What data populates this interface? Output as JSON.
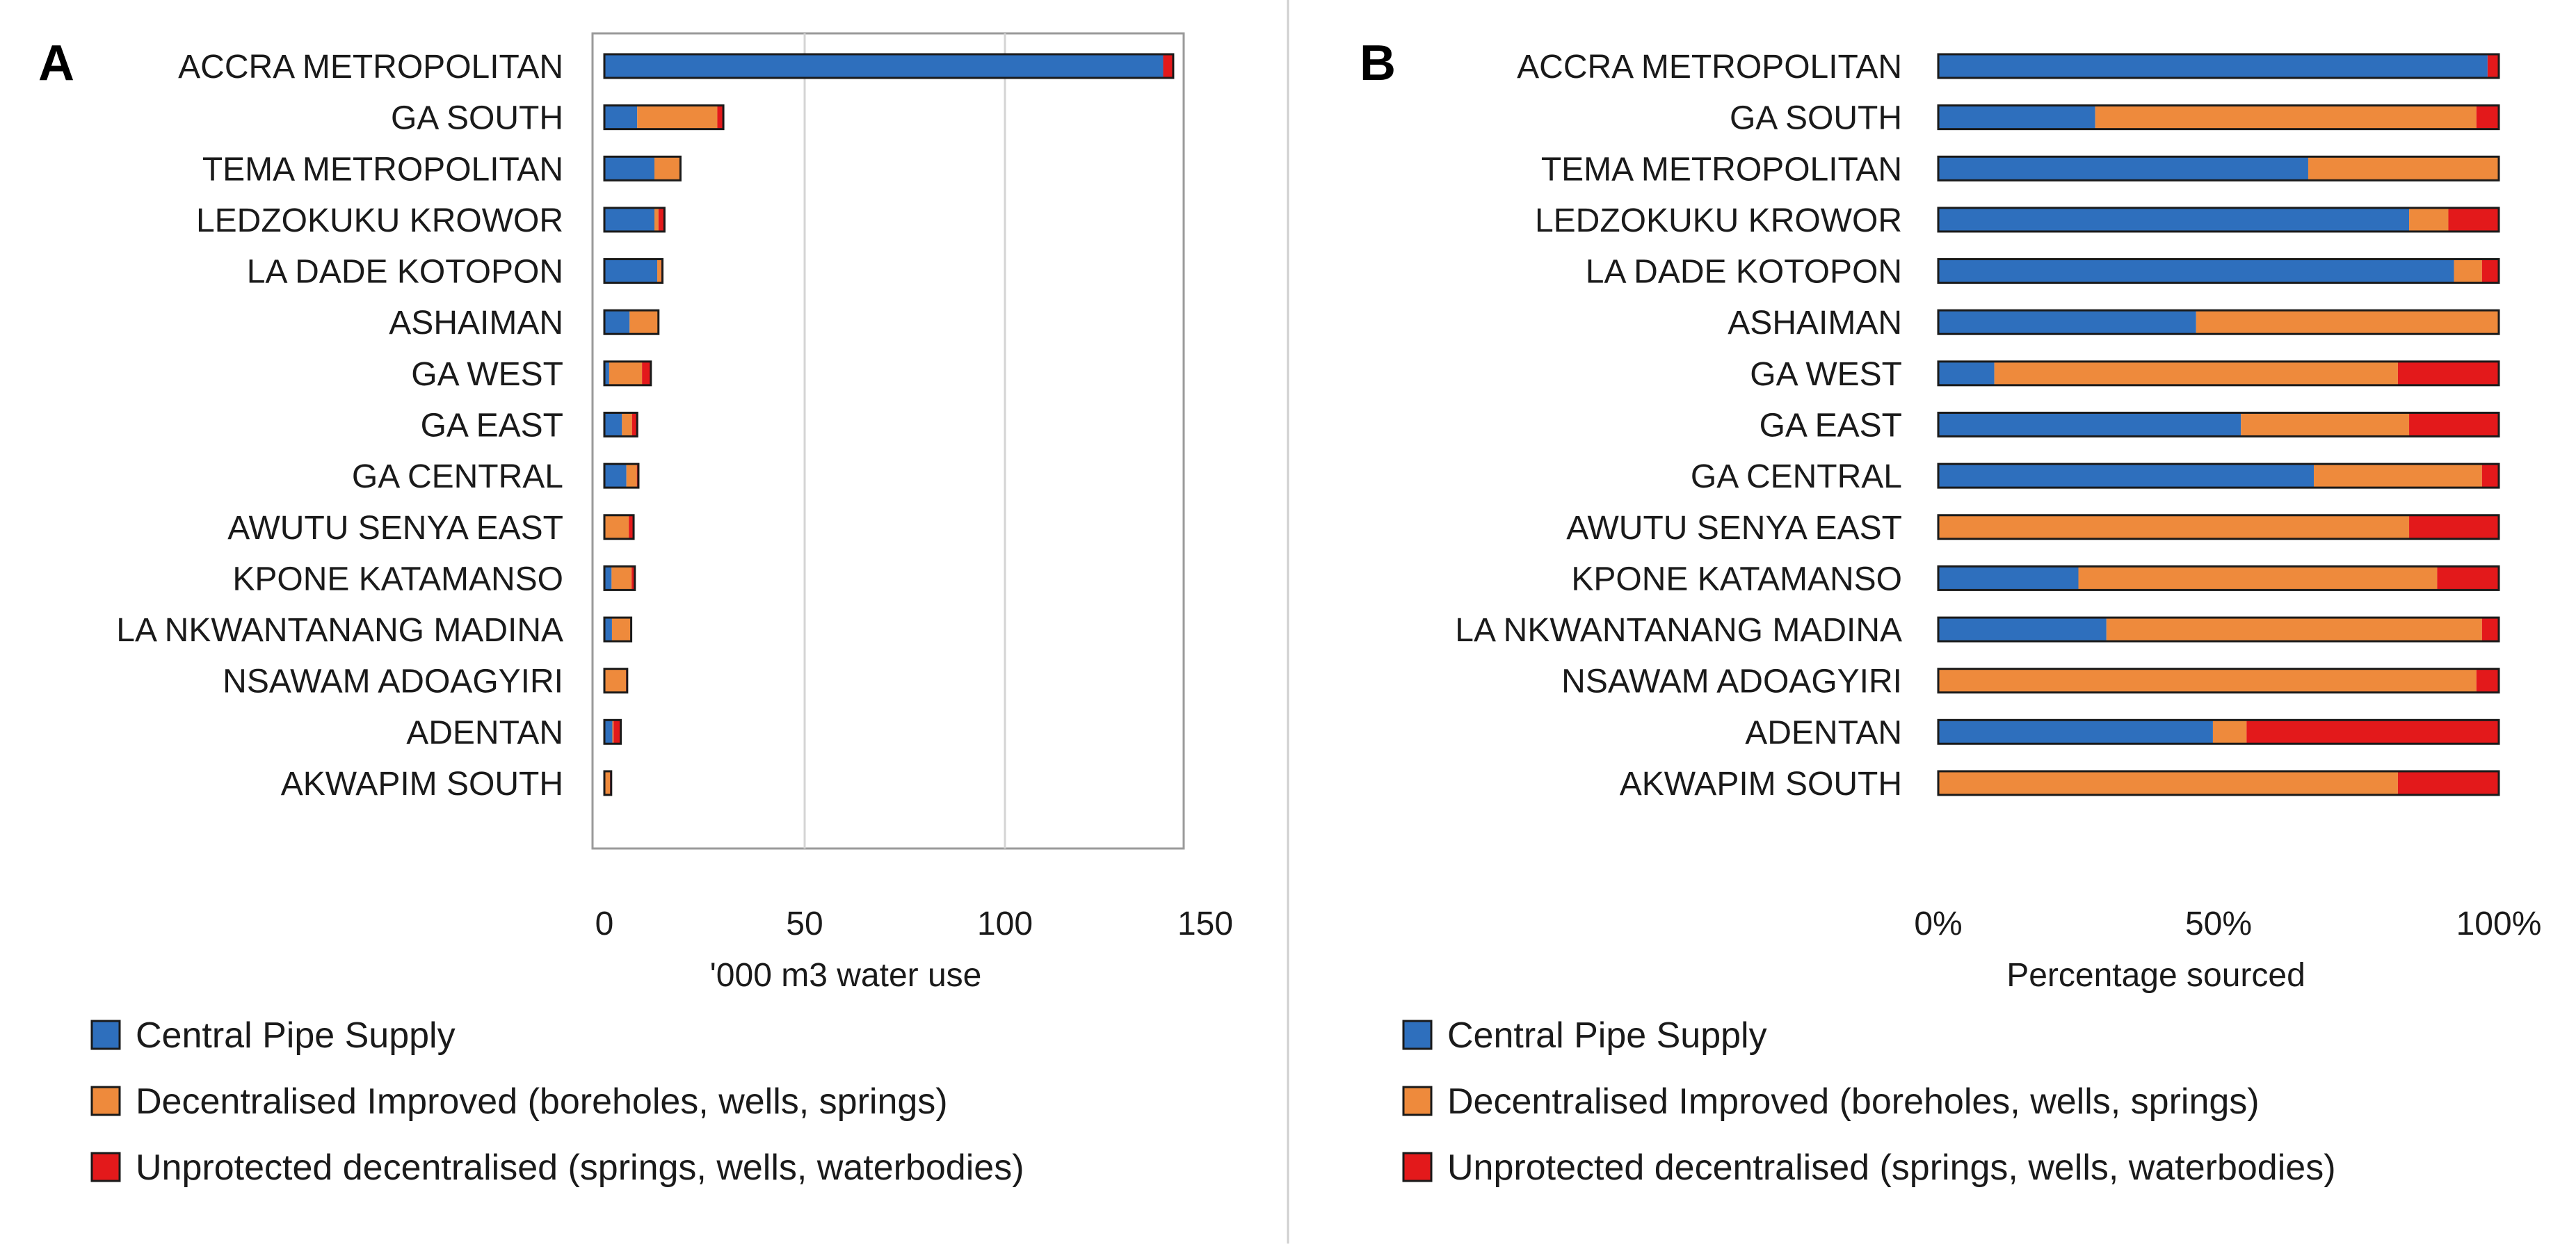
{
  "legend": {
    "central": "Central Pipe Supply",
    "improved": "Decentralised Improved (boreholes, wells, springs)",
    "unprotected": "Unprotected decentralised (springs, wells, waterbodies)"
  },
  "colors": {
    "central": "#2e6fbd",
    "improved": "#ee8a3c",
    "unprotected": "#e3191b",
    "outline": "#1a1a1a",
    "grid": "#d4d4d4",
    "divider": "#cfcfcf"
  },
  "chart_data": [
    {
      "panel": "A",
      "type": "bar",
      "orientation": "horizontal",
      "stacked": true,
      "title": "",
      "xlabel": "'000 m3 water use",
      "ylabel": "",
      "xlim": [
        0,
        150
      ],
      "xticks": [
        0,
        50,
        100,
        150
      ],
      "xtick_labels": [
        "0",
        "50",
        "100",
        "150"
      ],
      "grid": true,
      "categories": [
        "ACCRA METROPOLITAN",
        "GA SOUTH",
        "TEMA METROPOLITAN",
        "LEDZOKUKU KROWOR",
        "LA DADE KOTOPON",
        "ASHAIMAN",
        "GA WEST",
        "GA EAST",
        "GA CENTRAL",
        "AWUTU SENYA EAST",
        "KPONE KATAMANSO",
        "LA NKWANTANANG MADINA",
        "NSAWAM ADOAGYIRI",
        "ADENTAN",
        "AKWAPIM SOUTH"
      ],
      "series": [
        {
          "name": "Central Pipe Supply",
          "key": "central",
          "values": [
            139.5,
            8.2,
            12.5,
            12.5,
            13.2,
            6.3,
            1.2,
            4.4,
            5.5,
            0,
            1.8,
            1.9,
            0,
            2.0,
            0
          ]
        },
        {
          "name": "Decentralised Improved (boreholes, wells, springs)",
          "key": "improved",
          "values": [
            0,
            20.0,
            6.5,
            1.0,
            1.0,
            7.2,
            8.2,
            2.5,
            2.6,
            6.1,
            5.0,
            4.6,
            5.4,
            0.3,
            1.4
          ]
        },
        {
          "name": "Unprotected decentralised (springs, wells, waterbodies)",
          "key": "unprotected",
          "values": [
            2.5,
            1.5,
            0,
            1.5,
            0.3,
            0,
            2.2,
            1.3,
            0.4,
            1.2,
            0.8,
            0.2,
            0.3,
            1.8,
            0.3
          ]
        }
      ]
    },
    {
      "panel": "B",
      "type": "bar",
      "orientation": "horizontal",
      "stacked": true,
      "title": "",
      "xlabel": "Percentage sourced",
      "ylabel": "",
      "xlim": [
        0,
        100
      ],
      "xticks": [
        0,
        50,
        100
      ],
      "xtick_labels": [
        "0%",
        "50%",
        "100%"
      ],
      "grid": false,
      "categories": [
        "ACCRA METROPOLITAN",
        "GA SOUTH",
        "TEMA METROPOLITAN",
        "LEDZOKUKU KROWOR",
        "LA DADE KOTOPON",
        "ASHAIMAN",
        "GA WEST",
        "GA EAST",
        "GA CENTRAL",
        "AWUTU SENYA EAST",
        "KPONE KATAMANSO",
        "LA NKWANTANANG MADINA",
        "NSAWAM ADOAGYIRI",
        "ADENTAN",
        "AKWAPIM SOUTH"
      ],
      "series": [
        {
          "name": "Central Pipe Supply",
          "key": "central",
          "values": [
            98,
            28,
            66,
            84,
            92,
            46,
            10,
            54,
            67,
            0,
            25,
            30,
            0,
            49,
            0
          ]
        },
        {
          "name": "Decentralised Improved (boreholes, wells, springs)",
          "key": "improved",
          "values": [
            0,
            68,
            34,
            7,
            5,
            54,
            72,
            30,
            30,
            84,
            64,
            67,
            96,
            6,
            82
          ]
        },
        {
          "name": "Unprotected decentralised (springs, wells, waterbodies)",
          "key": "unprotected",
          "values": [
            2,
            4,
            0,
            9,
            3,
            0,
            18,
            16,
            3,
            16,
            11,
            3,
            4,
            45,
            18
          ]
        }
      ]
    }
  ]
}
